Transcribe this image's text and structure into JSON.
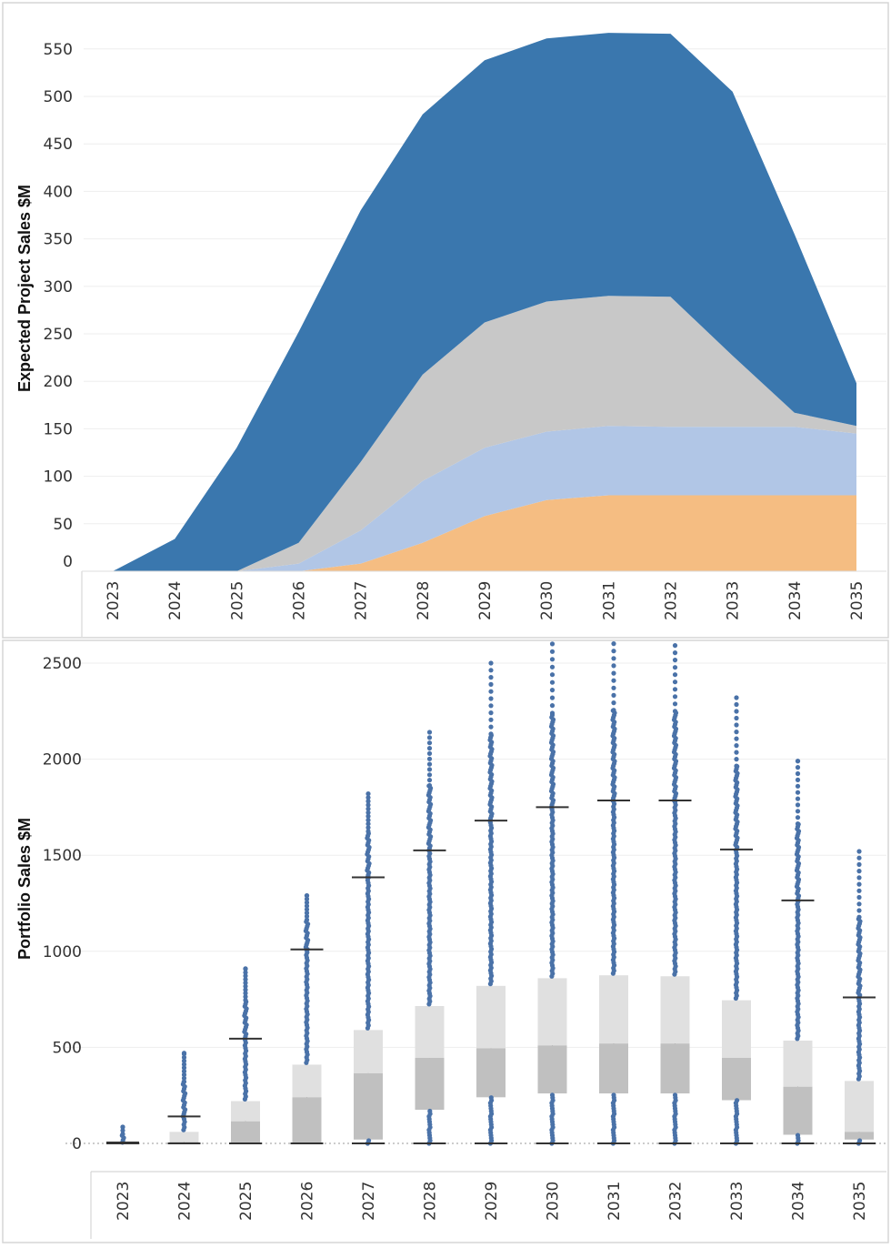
{
  "chart_data": [
    {
      "type": "area",
      "stacked": true,
      "ylabel": "Expected Project Sales $M",
      "xlabel": "",
      "categories": [
        "2023",
        "2024",
        "2025",
        "2026",
        "2027",
        "2028",
        "2029",
        "2030",
        "2031",
        "2032",
        "2033",
        "2034",
        "2035"
      ],
      "ylim": [
        0,
        570
      ],
      "yticks": [
        0,
        50,
        100,
        150,
        200,
        250,
        300,
        350,
        400,
        450,
        500,
        550
      ],
      "grid": true,
      "series": [
        {
          "color": "#f5bd82",
          "values": [
            0,
            0,
            0,
            0,
            8,
            30,
            58,
            75,
            80,
            80,
            80,
            80,
            80
          ]
        },
        {
          "color": "#b1c6e6",
          "values": [
            0,
            0,
            0,
            8,
            35,
            65,
            72,
            72,
            73,
            72,
            72,
            72,
            65
          ]
        },
        {
          "color": "#c8c8c8",
          "values": [
            0,
            0,
            0,
            22,
            72,
            112,
            132,
            137,
            137,
            137,
            75,
            15,
            8
          ]
        },
        {
          "color": "#3a77ae",
          "values": [
            0,
            34,
            130,
            222,
            265,
            274,
            276,
            277,
            277,
            277,
            278,
            188,
            45
          ]
        }
      ]
    },
    {
      "type": "box",
      "ylabel": "Portfolio Sales $M",
      "xlabel": "",
      "categories": [
        "2023",
        "2024",
        "2025",
        "2026",
        "2027",
        "2028",
        "2029",
        "2030",
        "2031",
        "2032",
        "2033",
        "2034",
        "2035"
      ],
      "ylim": [
        -100,
        2650
      ],
      "yticks": [
        0,
        500,
        1000,
        1500,
        2000,
        2500
      ],
      "grid": true,
      "box_colors": {
        "upper": "#e0e0e0",
        "lower": "#c0c0c0",
        "points": "#4a72a8"
      },
      "boxes": [
        {
          "whisker_low": 0,
          "q1": 0,
          "median": 2,
          "q3": 5,
          "whisker_high": 5,
          "outlier_max": 85
        },
        {
          "whisker_low": 0,
          "q1": 0,
          "median": 8,
          "q3": 60,
          "whisker_high": 140,
          "outlier_max": 470
        },
        {
          "whisker_low": 0,
          "q1": 0,
          "median": 115,
          "q3": 220,
          "whisker_high": 545,
          "outlier_max": 910
        },
        {
          "whisker_low": 0,
          "q1": 0,
          "median": 240,
          "q3": 410,
          "whisker_high": 1010,
          "outlier_max": 1290
        },
        {
          "whisker_low": 0,
          "q1": 20,
          "median": 365,
          "q3": 590,
          "whisker_high": 1385,
          "outlier_max": 1820
        },
        {
          "whisker_low": 0,
          "q1": 175,
          "median": 445,
          "q3": 715,
          "whisker_high": 1525,
          "outlier_max": 2140
        },
        {
          "whisker_low": 0,
          "q1": 240,
          "median": 495,
          "q3": 820,
          "whisker_high": 1680,
          "outlier_max": 2500
        },
        {
          "whisker_low": 0,
          "q1": 260,
          "median": 510,
          "q3": 860,
          "whisker_high": 1750,
          "outlier_max": 2640
        },
        {
          "whisker_low": 0,
          "q1": 260,
          "median": 520,
          "q3": 875,
          "whisker_high": 1785,
          "outlier_max": 2640
        },
        {
          "whisker_low": 0,
          "q1": 260,
          "median": 520,
          "q3": 870,
          "whisker_high": 1785,
          "outlier_max": 2630
        },
        {
          "whisker_low": 0,
          "q1": 225,
          "median": 445,
          "q3": 745,
          "whisker_high": 1530,
          "outlier_max": 2320
        },
        {
          "whisker_low": 0,
          "q1": 45,
          "median": 295,
          "q3": 535,
          "whisker_high": 1265,
          "outlier_max": 1990
        },
        {
          "whisker_low": 0,
          "q1": 20,
          "median": 60,
          "q3": 325,
          "whisker_high": 760,
          "outlier_max": 1520
        }
      ]
    }
  ]
}
